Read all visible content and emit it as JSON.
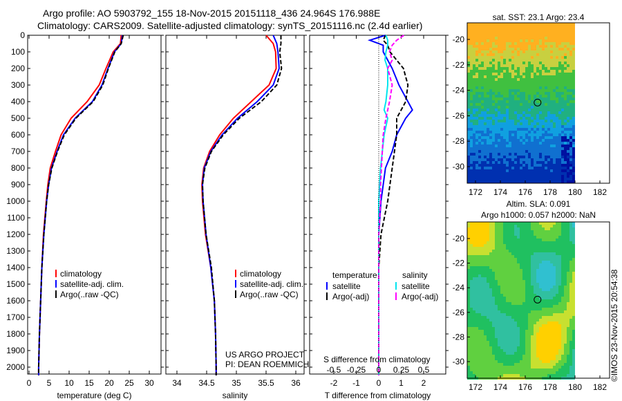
{
  "title": {
    "line1": "Argo profile: AO 5903792_155 18-Nov-2015 20151118_436 24.964S 176.988E",
    "line2": "Climatology: CARS2009. Satellite-adjusted climatology: synTS_20151116.nc (2.4d earlier)"
  },
  "stamp": "©IMOS 23-Nov-2015 20:54:38",
  "colors": {
    "clim": "#ff0000",
    "sat": "#0000ff",
    "argo": "#000000",
    "ssat": "#00e5ee",
    "sargo": "#ff00ff"
  },
  "chart_data": [
    {
      "type": "line",
      "xlabel": "temperature (deg C)",
      "xlim": [
        -2,
        32
      ],
      "ylim": [
        0,
        2050
      ],
      "xticks": [
        "0",
        "5",
        "10",
        "15",
        "20",
        "25",
        "30"
      ],
      "yticks": [
        "0",
        "100",
        "200",
        "300",
        "400",
        "500",
        "600",
        "700",
        "800",
        "900",
        "1000",
        "1100",
        "1200",
        "1300",
        "1400",
        "1500",
        "1600",
        "1700",
        "1800",
        "1900",
        "2000"
      ],
      "depth": [
        0,
        50,
        100,
        200,
        300,
        400,
        500,
        600,
        700,
        800,
        900,
        1000,
        1200,
        1400,
        1600,
        1800,
        2000,
        2050
      ],
      "series": [
        {
          "name": "climatology",
          "color": "clim",
          "values": [
            23,
            22.8,
            21,
            19.2,
            17.5,
            14.5,
            10.5,
            8,
            6.6,
            5.3,
            4.7,
            4.3,
            3.6,
            3.2,
            2.9,
            2.6,
            2.4,
            2.4
          ]
        },
        {
          "name": "satellite-adj. clim.",
          "color": "sat",
          "values": [
            23.3,
            23,
            21.3,
            19.7,
            18.2,
            15.8,
            11.5,
            8.6,
            7,
            5.6,
            4.9,
            4.4,
            3.7,
            3.2,
            2.9,
            2.6,
            2.4,
            2.4
          ]
        },
        {
          "name": "Argo(..raw -QC)",
          "color": "argo",
          "values": [
            23.5,
            23,
            21.4,
            19.8,
            18.4,
            16,
            11.7,
            8.8,
            7.1,
            5.7,
            4.9,
            4.4,
            3.7,
            3.2,
            2.9,
            2.6,
            2.4,
            2.4
          ]
        }
      ]
    },
    {
      "type": "line",
      "xlabel": "salinity",
      "xlim": [
        33.7,
        36.1
      ],
      "xticks": [
        "34",
        "34.5",
        "35",
        "35.5",
        "36"
      ],
      "depth": [
        0,
        50,
        100,
        200,
        300,
        400,
        500,
        600,
        700,
        800,
        900,
        1000,
        1200,
        1400,
        1600,
        1800,
        2000,
        2050
      ],
      "series": [
        {
          "name": "climatology",
          "color": "clim",
          "values": [
            35.5,
            35.62,
            35.66,
            35.67,
            35.55,
            35.25,
            34.95,
            34.72,
            34.55,
            34.45,
            34.42,
            34.43,
            34.48,
            34.57,
            34.63,
            34.65,
            34.66,
            34.66
          ]
        },
        {
          "name": "satellite-adj. clim.",
          "color": "sat",
          "values": [
            35.62,
            35.68,
            35.7,
            35.72,
            35.62,
            35.35,
            35.02,
            34.76,
            34.57,
            34.46,
            34.43,
            34.44,
            34.49,
            34.57,
            34.63,
            34.65,
            34.66,
            34.66
          ]
        },
        {
          "name": "Argo(..raw -QC)",
          "color": "argo",
          "values": [
            35.75,
            35.75,
            35.73,
            35.76,
            35.68,
            35.42,
            35.05,
            34.78,
            34.58,
            34.47,
            34.43,
            34.44,
            34.49,
            34.58,
            34.63,
            34.65,
            34.66,
            34.66
          ]
        }
      ],
      "annotation": [
        "US ARGO PROJECT",
        "PI: DEAN ROEMMICH"
      ]
    },
    {
      "type": "line",
      "xlabel": "T difference from climatology",
      "x2label": "S difference from climatology",
      "xlim": [
        -2.9,
        2.9
      ],
      "xticks": [
        "-2",
        "-1",
        "0",
        "1",
        "2"
      ],
      "x2ticks": [
        "-0.5",
        "-0.25",
        "0",
        "0.25",
        "0.5"
      ],
      "depth": [
        0,
        30,
        60,
        100,
        150,
        200,
        300,
        400,
        450,
        500,
        600,
        700,
        800,
        900,
        1000,
        1200,
        1400,
        2050
      ],
      "series": [
        {
          "name": "temperature satellite",
          "color": "sat",
          "values": [
            0.3,
            -0.4,
            0.2,
            0.2,
            0.4,
            0.6,
            0.9,
            1.3,
            1.5,
            1.2,
            0.8,
            0.6,
            0.3,
            0.2,
            0.1,
            0,
            0,
            0
          ]
        },
        {
          "name": "temperature Argo(-adj)",
          "color": "argo",
          "values": [
            0.3,
            0.2,
            0.4,
            0.5,
            0.8,
            1.1,
            1.3,
            1.2,
            1,
            0.8,
            0.8,
            0.7,
            0.6,
            0.5,
            0.4,
            0.1,
            0,
            0
          ]
        },
        {
          "name": "salinity satellite",
          "color": "ssat",
          "values": [
            0.08,
            0.1,
            0.1,
            0.08,
            0.07,
            0.1,
            0.1,
            0.08,
            0.06,
            0.1,
            0.06,
            0.04,
            0.02,
            0.01,
            0,
            0,
            0,
            0
          ]
        },
        {
          "name": "salinity Argo(-adj)",
          "color": "sargo",
          "values": [
            0.28,
            0.2,
            0.15,
            0.12,
            0.15,
            0.1,
            0.15,
            0.12,
            0.1,
            0.08,
            0.05,
            0.04,
            0.03,
            0.02,
            0.02,
            0,
            0,
            0
          ]
        }
      ],
      "legend": {
        "temperature": "temperature",
        "salinity": "salinity",
        "sat": "satellite",
        "argo": "Argo(-adj)"
      }
    },
    {
      "type": "heatmap",
      "title": "sat. SST: 23.1  Argo: 23.4",
      "xticks": [
        "172",
        "174",
        "176",
        "178",
        "180",
        "182"
      ],
      "yticks": [
        "-20",
        "-22",
        "-24",
        "-26",
        "-28",
        "-30"
      ],
      "marker": [
        176.988,
        -24.964
      ]
    },
    {
      "type": "heatmap",
      "title": "Altim. SLA: 0.091",
      "subtitle": "Argo h1000: 0.057 h2000: NaN",
      "xticks": [
        "172",
        "174",
        "176",
        "178",
        "180",
        "182"
      ],
      "yticks": [
        "-20",
        "-22",
        "-24",
        "-26",
        "-28",
        "-30"
      ],
      "marker": [
        176.988,
        -24.964
      ]
    }
  ]
}
